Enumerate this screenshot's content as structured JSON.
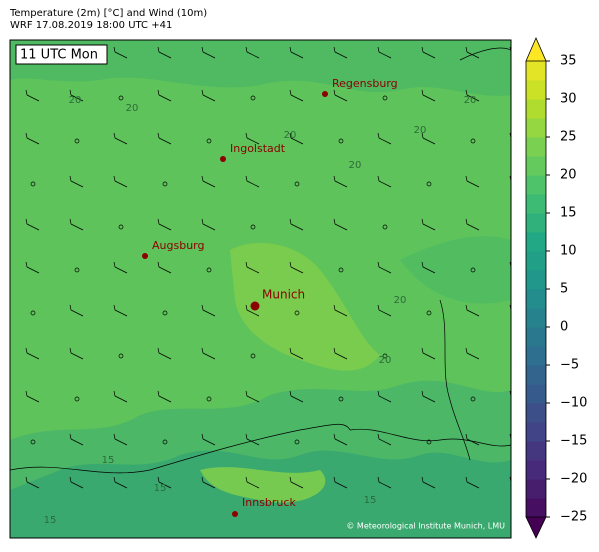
{
  "header": {
    "line1": "Temperature (2m) [°C] and Wind (10m)",
    "line2": "WRF 17.08.2019 18:00 UTC +41"
  },
  "map": {
    "time_label": "11 UTC Mon",
    "cities": [
      "Regensburg",
      "Ingolstadt",
      "Augsburg",
      "Munich",
      "Innsbruck"
    ],
    "contour_labels": [
      "20",
      "20",
      "20",
      "20",
      "20",
      "20",
      "20",
      "20",
      "15",
      "15",
      "15",
      "15"
    ],
    "credit": "© Meteorological Institute Munich, LMU"
  },
  "colorbar": {
    "lim": [
      -25,
      35
    ],
    "ticks": [
      {
        "value": -25,
        "label": "−25"
      },
      {
        "value": -20,
        "label": "−20"
      },
      {
        "value": -15,
        "label": "−15"
      },
      {
        "value": -10,
        "label": "−10"
      },
      {
        "value": -5,
        "label": "−5"
      },
      0,
      5,
      10,
      15,
      20,
      25,
      30,
      35
    ]
  }
}
